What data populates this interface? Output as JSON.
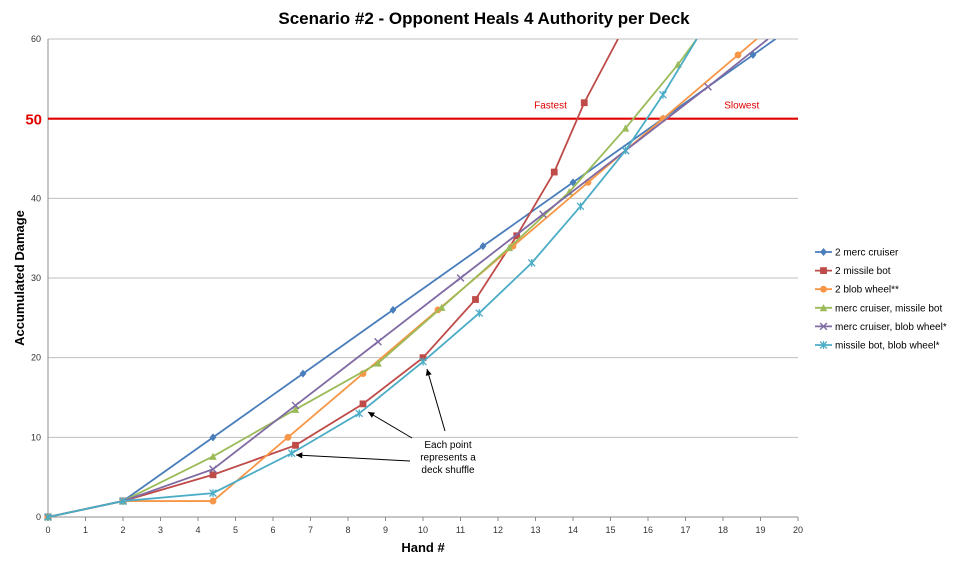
{
  "chart_data": {
    "type": "line",
    "title": "Scenario #2 - Opponent Heals 4 Authority per Deck",
    "xlabel": "Hand #",
    "ylabel": "Accumulated Damage",
    "xlim": [
      0,
      20
    ],
    "ylim": [
      0,
      60
    ],
    "x_ticks": [
      0,
      1,
      2,
      3,
      4,
      5,
      6,
      7,
      8,
      9,
      10,
      11,
      12,
      13,
      14,
      15,
      16,
      17,
      18,
      19,
      20
    ],
    "y_ticks": [
      0,
      10,
      20,
      30,
      40,
      50,
      60
    ],
    "grid": "horizontal",
    "legend_position": "right",
    "reference_line": {
      "value": 50,
      "label": "50",
      "color": "#e00000",
      "left_label": "Fastest",
      "right_label": "Slowest"
    },
    "annotation": {
      "lines": [
        "Each point",
        "represents a",
        "deck shuffle"
      ]
    },
    "series": [
      {
        "name": "2 merc cruiser",
        "color": "#4a7ebb",
        "marker": "diamond",
        "points": [
          [
            0,
            0
          ],
          [
            2,
            2
          ],
          [
            4.4,
            10
          ],
          [
            6.8,
            18
          ],
          [
            9.2,
            26
          ],
          [
            11.6,
            34
          ],
          [
            14,
            42
          ],
          [
            16.4,
            50
          ],
          [
            18.8,
            58
          ],
          [
            19.4,
            60
          ]
        ]
      },
      {
        "name": "2 missile bot",
        "color": "#be4b48",
        "marker": "square",
        "points": [
          [
            0,
            0
          ],
          [
            2,
            2
          ],
          [
            4.4,
            5.3
          ],
          [
            6.6,
            9
          ],
          [
            8.4,
            14.2
          ],
          [
            10,
            20
          ],
          [
            11.4,
            27.3
          ],
          [
            12.5,
            35.3
          ],
          [
            13.5,
            43.3
          ],
          [
            14.3,
            52
          ],
          [
            15.2,
            60
          ]
        ]
      },
      {
        "name": "2 blob wheel**",
        "color": "#f79646",
        "marker": "circle",
        "points": [
          [
            0,
            0
          ],
          [
            2,
            2
          ],
          [
            4.4,
            2
          ],
          [
            6.4,
            10
          ],
          [
            8.4,
            18
          ],
          [
            10.4,
            26
          ],
          [
            12.4,
            34
          ],
          [
            14.4,
            42
          ],
          [
            16.4,
            50
          ],
          [
            18.4,
            58
          ],
          [
            18.9,
            60
          ]
        ]
      },
      {
        "name": "merc cruiser, missile bot",
        "color": "#9bbb59",
        "marker": "triangle",
        "points": [
          [
            0,
            0
          ],
          [
            2,
            2
          ],
          [
            4.4,
            7.6
          ],
          [
            6.6,
            13.5
          ],
          [
            8.8,
            19.3
          ],
          [
            10.5,
            26.3
          ],
          [
            12.3,
            33.8
          ],
          [
            13.9,
            40.8
          ],
          [
            15.4,
            48.8
          ],
          [
            16.8,
            56.8
          ],
          [
            17.3,
            60
          ]
        ]
      },
      {
        "name": "merc cruiser, blob wheel*",
        "color": "#7f6aa3",
        "marker": "x",
        "points": [
          [
            0,
            0
          ],
          [
            2,
            2
          ],
          [
            4.4,
            6
          ],
          [
            6.6,
            14
          ],
          [
            8.8,
            22
          ],
          [
            11,
            30
          ],
          [
            13.2,
            38
          ],
          [
            15.4,
            46
          ],
          [
            17.6,
            54
          ],
          [
            19.2,
            60
          ]
        ]
      },
      {
        "name": "missile bot, blob wheel*",
        "color": "#4bacc6",
        "marker": "star",
        "points": [
          [
            0,
            0
          ],
          [
            2,
            2
          ],
          [
            4.4,
            3
          ],
          [
            6.5,
            8
          ],
          [
            8.3,
            13
          ],
          [
            10,
            19.5
          ],
          [
            11.5,
            25.6
          ],
          [
            12.9,
            31.9
          ],
          [
            14.2,
            39
          ],
          [
            15.4,
            46
          ],
          [
            16.4,
            53
          ],
          [
            17.3,
            60
          ]
        ]
      }
    ]
  }
}
